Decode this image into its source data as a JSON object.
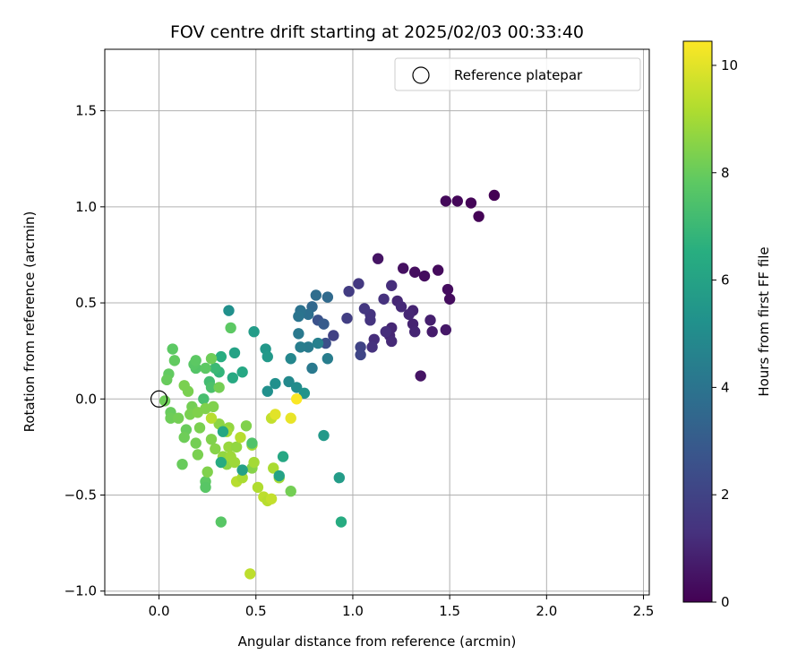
{
  "chart_data": {
    "type": "scatter",
    "title": "FOV centre drift starting at 2025/02/03 00:33:40",
    "xlabel": "Angular distance from reference (arcmin)",
    "ylabel": "Rotation from reference (arcmin)",
    "xlim": [
      -0.28,
      2.53
    ],
    "ylim": [
      -1.02,
      1.82
    ],
    "xticks": [
      0.0,
      0.5,
      1.0,
      1.5,
      2.0,
      2.5
    ],
    "xtick_labels": [
      "0.0",
      "0.5",
      "1.0",
      "1.5",
      "2.0",
      "2.5"
    ],
    "yticks": [
      -1.0,
      -0.5,
      0.0,
      0.5,
      1.0,
      1.5
    ],
    "ytick_labels": [
      "−1.0",
      "−0.5",
      "0.0",
      "0.5",
      "1.0",
      "1.5"
    ],
    "grid": true,
    "legend": {
      "position": "top-right",
      "label": "Reference platepar"
    },
    "reference_point": [
      0.0,
      0.0
    ],
    "colorbar": {
      "label": "Hours from first FF file",
      "colormap": "viridis",
      "range": [
        0,
        10.45
      ],
      "ticks": [
        0,
        2,
        4,
        6,
        8,
        10
      ],
      "tick_labels": [
        "0",
        "2",
        "4",
        "6",
        "8",
        "10"
      ]
    },
    "points": [
      [
        1.48,
        1.03,
        0.2
      ],
      [
        1.54,
        1.03,
        0.15
      ],
      [
        1.61,
        1.02,
        0.1
      ],
      [
        1.65,
        0.95,
        0.05
      ],
      [
        1.73,
        1.06,
        0.0
      ],
      [
        1.13,
        0.73,
        0.5
      ],
      [
        1.26,
        0.68,
        0.4
      ],
      [
        1.32,
        0.66,
        0.35
      ],
      [
        1.37,
        0.64,
        0.3
      ],
      [
        1.44,
        0.67,
        0.25
      ],
      [
        1.49,
        0.57,
        0.3
      ],
      [
        1.5,
        0.52,
        0.3
      ],
      [
        1.48,
        0.36,
        0.6
      ],
      [
        1.41,
        0.35,
        0.7
      ],
      [
        1.4,
        0.41,
        0.8
      ],
      [
        1.35,
        0.12,
        0.5
      ],
      [
        1.31,
        0.46,
        0.9
      ],
      [
        1.31,
        0.39,
        0.9
      ],
      [
        1.32,
        0.35,
        0.95
      ],
      [
        1.29,
        0.44,
        1.0
      ],
      [
        1.23,
        0.51,
        1.0
      ],
      [
        1.25,
        0.48,
        1.1
      ],
      [
        1.2,
        0.59,
        1.2
      ],
      [
        1.16,
        0.52,
        1.3
      ],
      [
        1.2,
        0.37,
        1.0
      ],
      [
        1.19,
        0.33,
        1.0
      ],
      [
        1.2,
        0.3,
        1.1
      ],
      [
        1.17,
        0.35,
        1.2
      ],
      [
        1.11,
        0.31,
        1.2
      ],
      [
        1.1,
        0.27,
        1.3
      ],
      [
        1.09,
        0.41,
        1.4
      ],
      [
        1.09,
        0.44,
        1.4
      ],
      [
        1.06,
        0.47,
        1.5
      ],
      [
        1.03,
        0.6,
        1.6
      ],
      [
        0.98,
        0.56,
        1.7
      ],
      [
        0.97,
        0.42,
        1.8
      ],
      [
        0.9,
        0.33,
        1.9
      ],
      [
        1.04,
        0.27,
        2.0
      ],
      [
        1.04,
        0.23,
        2.1
      ],
      [
        0.86,
        0.29,
        2.5
      ],
      [
        0.82,
        0.41,
        2.6
      ],
      [
        0.85,
        0.39,
        3.0
      ],
      [
        0.87,
        0.53,
        3.6
      ],
      [
        0.81,
        0.54,
        3.7
      ],
      [
        0.79,
        0.48,
        3.5
      ],
      [
        0.77,
        0.44,
        3.8
      ],
      [
        0.73,
        0.46,
        3.9
      ],
      [
        0.72,
        0.43,
        4.0
      ],
      [
        0.72,
        0.34,
        4.2
      ],
      [
        0.77,
        0.27,
        4.3
      ],
      [
        0.73,
        0.27,
        4.4
      ],
      [
        0.82,
        0.29,
        4.5
      ],
      [
        0.87,
        0.21,
        4.4
      ],
      [
        0.79,
        0.16,
        4.2
      ],
      [
        0.68,
        0.21,
        4.8
      ],
      [
        0.67,
        0.09,
        4.9
      ],
      [
        0.71,
        0.06,
        5.0
      ],
      [
        0.75,
        0.03,
        5.3
      ],
      [
        0.6,
        0.08,
        5.2
      ],
      [
        0.56,
        0.04,
        5.2
      ],
      [
        0.55,
        0.26,
        5.5
      ],
      [
        0.56,
        0.22,
        5.6
      ],
      [
        0.49,
        0.35,
        5.7
      ],
      [
        0.36,
        0.46,
        5.2
      ],
      [
        0.39,
        0.24,
        6.0
      ],
      [
        0.43,
        0.14,
        6.2
      ],
      [
        0.38,
        0.11,
        6.3
      ],
      [
        0.32,
        0.22,
        6.5
      ],
      [
        0.31,
        0.14,
        6.8
      ],
      [
        0.29,
        0.16,
        7.0
      ],
      [
        0.26,
        0.09,
        7.2
      ],
      [
        0.27,
        0.06,
        7.4
      ],
      [
        0.23,
        0.0,
        7.3
      ],
      [
        0.19,
        0.16,
        7.6
      ],
      [
        0.18,
        0.18,
        7.7
      ],
      [
        0.19,
        0.2,
        7.8
      ],
      [
        0.24,
        0.16,
        7.8
      ],
      [
        0.27,
        0.21,
        8.1
      ],
      [
        0.08,
        0.2,
        7.9
      ],
      [
        0.07,
        0.26,
        7.8
      ],
      [
        0.05,
        0.13,
        7.9
      ],
      [
        0.04,
        0.1,
        8.0
      ],
      [
        0.03,
        -0.01,
        8.1
      ],
      [
        0.06,
        -0.07,
        8.0
      ],
      [
        0.06,
        -0.1,
        8.1
      ],
      [
        0.1,
        -0.1,
        8.2
      ],
      [
        0.13,
        0.07,
        8.3
      ],
      [
        0.15,
        0.04,
        8.3
      ],
      [
        0.17,
        -0.04,
        8.2
      ],
      [
        0.16,
        -0.08,
        8.3
      ],
      [
        0.2,
        -0.07,
        8.4
      ],
      [
        0.21,
        -0.15,
        8.3
      ],
      [
        0.24,
        -0.05,
        8.4
      ],
      [
        0.28,
        -0.04,
        8.4
      ],
      [
        0.31,
        0.06,
        8.2
      ],
      [
        0.14,
        -0.16,
        8.0
      ],
      [
        0.13,
        -0.2,
        8.1
      ],
      [
        0.19,
        -0.23,
        8.2
      ],
      [
        0.2,
        -0.29,
        8.3
      ],
      [
        0.12,
        -0.34,
        8.0
      ],
      [
        0.24,
        -0.43,
        7.8
      ],
      [
        0.24,
        -0.46,
        7.7
      ],
      [
        0.25,
        -0.38,
        8.4
      ],
      [
        0.29,
        -0.26,
        8.5
      ],
      [
        0.27,
        -0.21,
        8.4
      ],
      [
        0.31,
        -0.13,
        8.6
      ],
      [
        0.27,
        -0.1,
        9.3
      ],
      [
        0.36,
        -0.15,
        8.7
      ],
      [
        0.35,
        -0.17,
        9.0
      ],
      [
        0.36,
        -0.25,
        8.8
      ],
      [
        0.33,
        -0.3,
        8.7
      ],
      [
        0.35,
        -0.34,
        8.6
      ],
      [
        0.37,
        -0.3,
        8.9
      ],
      [
        0.39,
        -0.33,
        8.9
      ],
      [
        0.4,
        -0.25,
        8.7
      ],
      [
        0.42,
        -0.2,
        9.3
      ],
      [
        0.4,
        -0.43,
        9.3
      ],
      [
        0.43,
        -0.41,
        9.1
      ],
      [
        0.45,
        -0.14,
        8.4
      ],
      [
        0.48,
        -0.36,
        8.5
      ],
      [
        0.49,
        -0.33,
        9.0
      ],
      [
        0.48,
        -0.24,
        9.0
      ],
      [
        0.51,
        -0.46,
        9.2
      ],
      [
        0.54,
        -0.51,
        9.4
      ],
      [
        0.56,
        -0.53,
        9.3
      ],
      [
        0.58,
        -0.52,
        9.5
      ],
      [
        0.59,
        -0.36,
        9.1
      ],
      [
        0.62,
        -0.41,
        9.0
      ],
      [
        0.58,
        -0.1,
        9.5
      ],
      [
        0.6,
        -0.08,
        10.0
      ],
      [
        0.68,
        -0.1,
        10.1
      ],
      [
        0.71,
        0.0,
        10.4
      ],
      [
        0.68,
        -0.48,
        8.2
      ],
      [
        0.62,
        -0.4,
        6.0
      ],
      [
        0.64,
        -0.3,
        6.2
      ],
      [
        0.85,
        -0.19,
        5.6
      ],
      [
        0.93,
        -0.41,
        5.7
      ],
      [
        0.94,
        -0.64,
        6.4
      ],
      [
        0.32,
        -0.64,
        7.7
      ],
      [
        0.47,
        -0.91,
        9.4
      ],
      [
        0.37,
        0.37,
        7.8
      ],
      [
        0.32,
        -0.33,
        6.4
      ],
      [
        0.33,
        -0.17,
        6.2
      ],
      [
        0.43,
        -0.37,
        5.9
      ],
      [
        0.48,
        -0.23,
        7.5
      ]
    ]
  }
}
